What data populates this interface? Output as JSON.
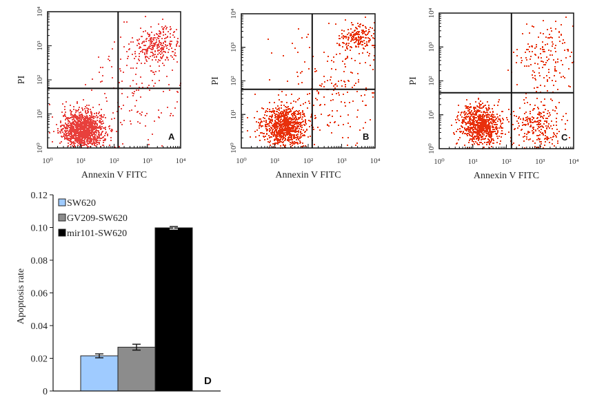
{
  "figure": {
    "flow_panels": [
      {
        "panel_label": "A",
        "xlabel": "Annexin V FITC",
        "ylabel": "PI",
        "tick_labels": [
          "10⁰",
          "10¹",
          "10²",
          "10³",
          "10⁴"
        ],
        "gate_x": 2.12,
        "gate_y": 1.75,
        "dot_color": "#e8403c",
        "clusters": [
          {
            "cx": 1.05,
            "cy": 0.55,
            "sx": 0.32,
            "sy": 0.28,
            "n": 1200
          },
          {
            "cx": 3.3,
            "cy": 3.05,
            "sx": 0.35,
            "sy": 0.25,
            "n": 260
          },
          {
            "cx": 2.7,
            "cy": 1.6,
            "sx": 0.8,
            "sy": 0.9,
            "n": 160
          }
        ]
      },
      {
        "panel_label": "B",
        "xlabel": "Annexin V FITC",
        "ylabel": "PI",
        "tick_labels": [
          "10⁰",
          "10¹",
          "10²",
          "10³",
          "10⁴"
        ],
        "gate_x": 2.12,
        "gate_y": 1.75,
        "dot_color": "#e8300c",
        "clusters": [
          {
            "cx": 1.25,
            "cy": 0.65,
            "sx": 0.33,
            "sy": 0.3,
            "n": 900
          },
          {
            "cx": 3.5,
            "cy": 3.3,
            "sx": 0.3,
            "sy": 0.2,
            "n": 180
          },
          {
            "cx": 2.8,
            "cy": 1.8,
            "sx": 0.9,
            "sy": 1.0,
            "n": 220
          }
        ]
      },
      {
        "panel_label": "C",
        "xlabel": "Annexin V FITC",
        "ylabel": "PI",
        "tick_labels": [
          "10⁰",
          "10¹",
          "10²",
          "10³",
          "10⁴"
        ],
        "gate_x": 2.15,
        "gate_y": 1.65,
        "dot_color": "#e8300c",
        "clusters": [
          {
            "cx": 1.2,
            "cy": 0.7,
            "sx": 0.3,
            "sy": 0.3,
            "n": 800
          },
          {
            "cx": 2.9,
            "cy": 0.7,
            "sx": 0.4,
            "sy": 0.4,
            "n": 260
          },
          {
            "cx": 3.2,
            "cy": 2.8,
            "sx": 0.5,
            "sy": 0.6,
            "n": 180
          }
        ]
      }
    ],
    "bar_panel": {
      "panel_label": "D"
    }
  },
  "chart_data": {
    "type": "bar",
    "categories": [
      "SW620",
      "GV209-SW620",
      "mir101-SW620"
    ],
    "series": [
      {
        "name": "Apoptosis rate",
        "values": [
          0.0215,
          0.0268,
          0.0998
        ],
        "errors": [
          0.0012,
          0.0018,
          0.0008
        ],
        "colors": [
          "#9fcbff",
          "#8c8c8c",
          "#000000"
        ]
      }
    ],
    "legend": [
      "SW620",
      "GV209-SW620",
      "mir101-SW620"
    ],
    "legend_position": "top-left",
    "ylabel": "Apoptosis rate",
    "xlabel": "",
    "ylim": [
      0,
      0.12
    ],
    "yticks": [
      "0",
      "0.02",
      "0.04",
      "0.06",
      "0.08",
      "0.10",
      "0.12"
    ],
    "grid": false
  }
}
